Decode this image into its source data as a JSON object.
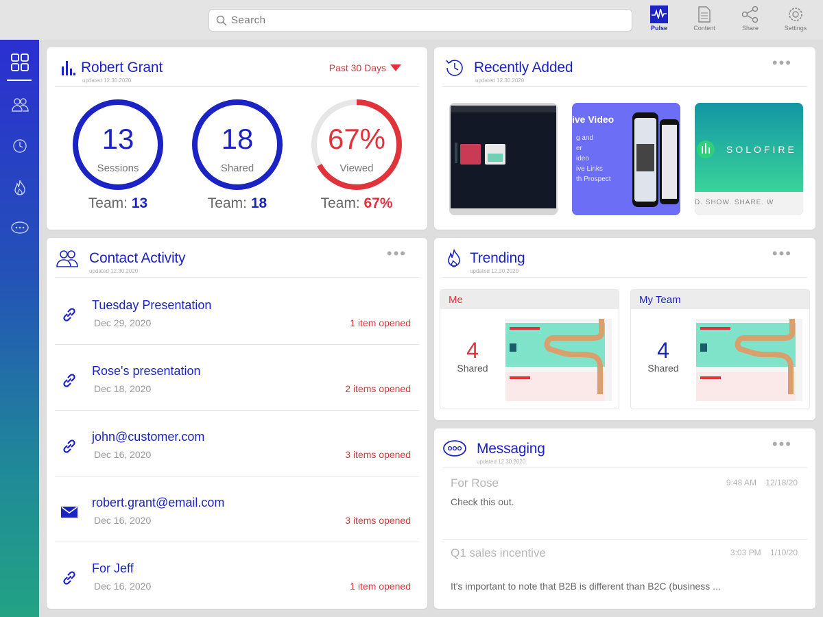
{
  "search": {
    "placeholder": "Search"
  },
  "topnav": [
    {
      "label": "Pulse",
      "icon": "pulse-icon",
      "active": true
    },
    {
      "label": "Content",
      "icon": "document-icon"
    },
    {
      "label": "Share",
      "icon": "share-icon"
    },
    {
      "label": "Settings",
      "icon": "gear-icon"
    }
  ],
  "sidebar": {
    "items": [
      {
        "icon": "dashboard-grid-icon"
      },
      {
        "icon": "contacts-icon"
      },
      {
        "icon": "history-icon"
      },
      {
        "icon": "flame-icon"
      },
      {
        "icon": "chat-bubble-icon"
      }
    ]
  },
  "colors": {
    "accent": "#1c23c4",
    "alert": "#e0333c",
    "sidebar_top": "#2b2fd0",
    "sidebar_bottom": "#23a384"
  },
  "user_card": {
    "name": "Robert Grant",
    "updated": "updated 12.30.2020",
    "range": "Past 30 Days",
    "stats": [
      {
        "value": "13",
        "label": "Sessions",
        "team_label": "Team:",
        "team_value": "13",
        "progress": 1.0,
        "color": "#1c23c4"
      },
      {
        "value": "18",
        "label": "Shared",
        "team_label": "Team:",
        "team_value": "18",
        "progress": 1.0,
        "color": "#1c23c4"
      },
      {
        "value": "67%",
        "label": "Viewed",
        "team_label": "Team:",
        "team_value": "67%",
        "progress": 0.67,
        "color": "#e0333c"
      }
    ]
  },
  "recent": {
    "title": "Recently Added",
    "updated": "updated 12.30.2020",
    "thumbs": [
      {
        "kind": "screen-capture"
      },
      {
        "kind": "video-promo",
        "caption": "ive Video",
        "lines": [
          "g and",
          "er",
          "ideo",
          "ive Links",
          "th Prospect"
        ]
      },
      {
        "kind": "logo-banner",
        "brand": "SOLOFIRE",
        "tagline": "D. SHOW. SHARE. W"
      }
    ]
  },
  "contact": {
    "title": "Contact Activity",
    "updated": "updated 12.30.2020",
    "rows": [
      {
        "icon": "link-icon",
        "title": "Tuesday Presentation",
        "date": "Dec 29, 2020",
        "opened": "1 item opened"
      },
      {
        "icon": "link-icon",
        "title": "Rose's presentation",
        "date": "Dec 18, 2020",
        "opened": "2 items opened"
      },
      {
        "icon": "link-icon",
        "title": "john@customer.com",
        "date": "Dec 16, 2020",
        "opened": "3 items opened"
      },
      {
        "icon": "envelope-icon",
        "title": "robert.grant@email.com",
        "date": "Dec 16, 2020",
        "opened": "3 items opened"
      },
      {
        "icon": "link-icon",
        "title": "For Jeff",
        "date": "Dec 16, 2020",
        "opened": "1 item opened"
      }
    ]
  },
  "trending": {
    "title": "Trending",
    "updated": "updated 12.30.2020",
    "panels": [
      {
        "label": "Me",
        "count": "4",
        "sub": "Shared",
        "color": "#e0333c"
      },
      {
        "label": "My Team",
        "count": "4",
        "sub": "Shared",
        "color": "#1c23c4"
      }
    ]
  },
  "messaging": {
    "title": "Messaging",
    "updated": "updated 12.30.2020",
    "messages": [
      {
        "title": "For Rose",
        "time": "9:48 AM",
        "date": "12/18/20",
        "body": "Check this out."
      },
      {
        "title": "Q1 sales incentive",
        "time": "3:03 PM",
        "date": "1/10/20",
        "body": "It's important to note that B2B is different than B2C (business ..."
      }
    ]
  }
}
